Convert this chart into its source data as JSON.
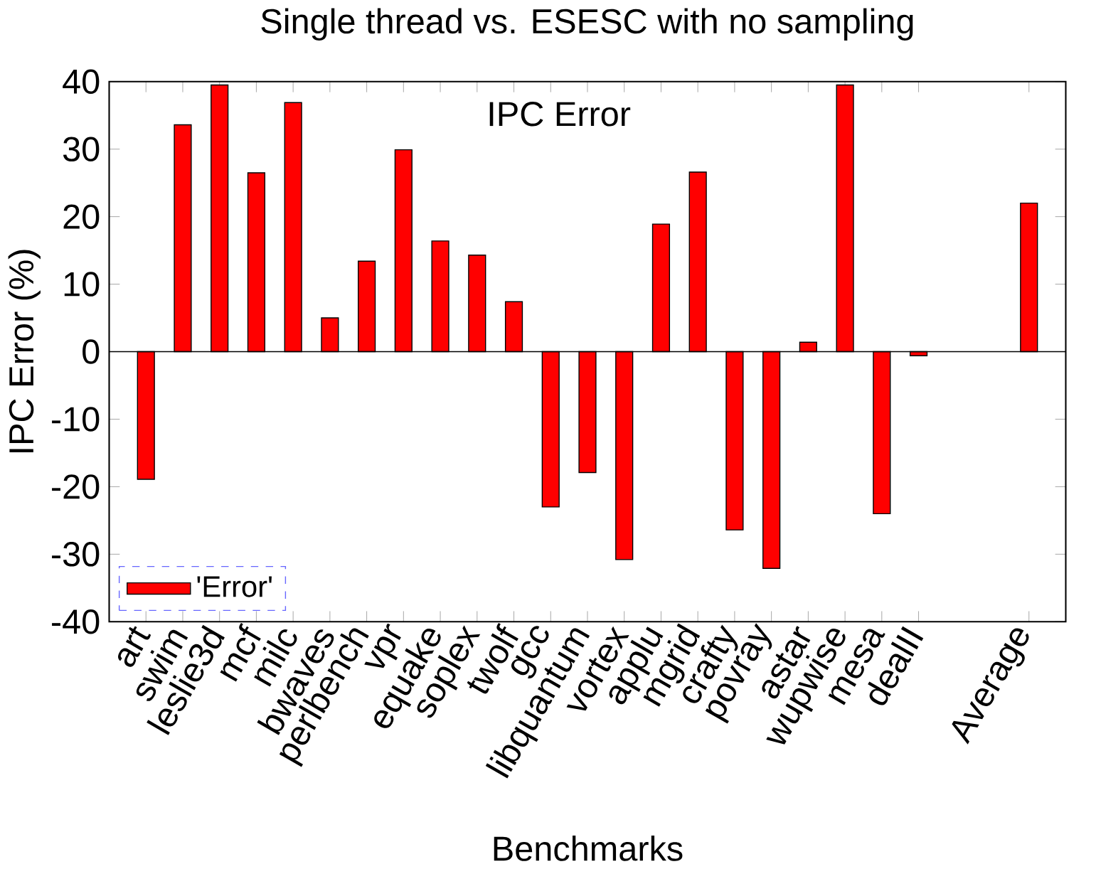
{
  "chart_data": {
    "type": "bar",
    "title": "Single thread vs. ESESC with no sampling",
    "xlabel": "Benchmarks",
    "ylabel": "IPC Error (%)",
    "annotations": [
      "IPC Error"
    ],
    "categories": [
      "art",
      "swim",
      "leslie3d",
      "mcf",
      "milc",
      "bwaves",
      "perlbench",
      "vpr",
      "equake",
      "soplex",
      "twolf",
      "gcc",
      "libquantum",
      "vortex",
      "applu",
      "mgrid",
      "crafty",
      "povray",
      "astar",
      "wupwise",
      "mesa",
      "dealII",
      null,
      null,
      "Average"
    ],
    "series": [
      {
        "name": "'Error'",
        "color": "#ff0000",
        "values": [
          -18.9,
          33.6,
          39.5,
          26.5,
          36.9,
          5.0,
          13.4,
          29.9,
          16.4,
          14.3,
          7.4,
          -23.0,
          -17.9,
          -30.8,
          18.9,
          26.6,
          -26.4,
          -32.1,
          1.4,
          39.5,
          -24.0,
          -0.6,
          null,
          null,
          22.0
        ]
      }
    ],
    "ylim": [
      -40,
      40
    ],
    "yticks": [
      -40,
      -30,
      -20,
      -10,
      0,
      10,
      20,
      30,
      40
    ],
    "ref_lines": [
      {
        "axis": "y",
        "value": 0,
        "color": "#000000"
      }
    ],
    "legend": "bottom left",
    "grid": false
  }
}
